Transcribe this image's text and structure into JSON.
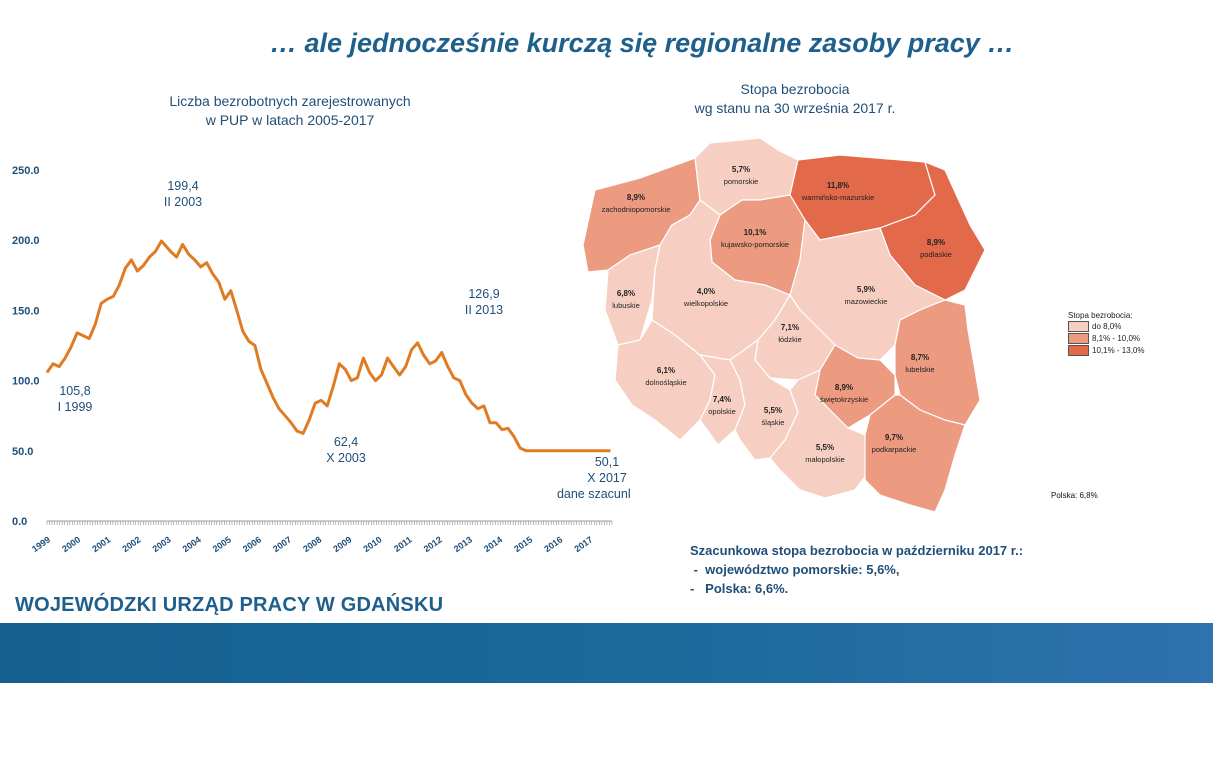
{
  "slide": {
    "title": "… ale jednocześnie kurczą się regionalne zasoby pracy …",
    "org_name": "WOJEWÓDZKI URZĄD PRACY W GDAŃSKU"
  },
  "line_chart_title": [
    "Liczba bezrobotnych zarejestrowanych",
    "w PUP w latach 2005-2017"
  ],
  "map_title": [
    "Stopa bezrobocia",
    "wg stanu na 30 września 2017 r."
  ],
  "estimate": {
    "heading": "Szacunkowa stopa bezrobocia w październiku 2017 r.:",
    "items": [
      " -  województwo pomorskie: 5,6%,",
      "-   Polska: 6,6%."
    ]
  },
  "chart_data": [
    {
      "type": "line",
      "color": "#e07b24",
      "ylim": [
        0,
        250
      ],
      "y_ticks": [
        "0.0",
        "50.0",
        "100.0",
        "150.0",
        "200.0",
        "250.0"
      ],
      "x_tick_labels": [
        "1999",
        "2000",
        "2001",
        "2002",
        "2003",
        "2004",
        "2005",
        "2006",
        "2007",
        "2008",
        "2009",
        "2010",
        "2011",
        "2012",
        "2013",
        "2014",
        "2015",
        "2016",
        "2017"
      ],
      "x": [
        1999.0,
        1999.2,
        1999.4,
        1999.6,
        1999.8,
        2000.0,
        2000.2,
        2000.4,
        2000.6,
        2000.8,
        2001.0,
        2001.2,
        2001.4,
        2001.6,
        2001.8,
        2002.0,
        2002.2,
        2002.4,
        2002.6,
        2002.8,
        2003.1,
        2003.3,
        2003.5,
        2003.7,
        2003.9,
        2004.1,
        2004.3,
        2004.5,
        2004.7,
        2004.9,
        2005.1,
        2005.3,
        2005.5,
        2005.7,
        2005.9,
        2006.1,
        2006.3,
        2006.5,
        2006.7,
        2006.9,
        2007.1,
        2007.3,
        2007.5,
        2007.7,
        2007.9,
        2008.1,
        2008.3,
        2008.5,
        2008.7,
        2008.9,
        2009.1,
        2009.3,
        2009.5,
        2009.7,
        2009.9,
        2010.1,
        2010.3,
        2010.5,
        2010.7,
        2010.9,
        2011.1,
        2011.3,
        2011.5,
        2011.7,
        2011.9,
        2012.1,
        2012.3,
        2012.5,
        2012.7,
        2012.9,
        2013.1,
        2013.3,
        2013.5,
        2013.7,
        2013.9,
        2014.1,
        2014.3,
        2014.5,
        2014.7,
        2014.9,
        2015.1,
        2015.3,
        2015.5,
        2015.7,
        2015.9,
        2016.1,
        2016.3,
        2016.5,
        2016.7,
        2016.9,
        2017.1,
        2017.3,
        2017.5,
        2017.7
      ],
      "y": [
        105.8,
        112,
        110,
        116,
        124,
        134,
        132,
        130,
        140,
        155,
        158,
        160,
        168,
        180,
        186,
        178,
        182,
        188,
        192,
        199.4,
        192,
        188,
        197,
        190,
        186,
        181,
        184,
        176,
        170,
        158,
        164,
        150,
        135,
        128,
        125,
        108,
        98,
        88,
        80,
        75,
        70,
        64,
        62.4,
        72,
        84,
        86,
        82,
        96,
        112,
        108,
        100,
        102,
        116,
        106,
        100,
        104,
        116,
        110,
        104,
        110,
        122,
        126.9,
        118,
        112,
        114,
        120,
        110,
        102,
        100,
        90,
        84,
        80,
        82,
        70,
        70,
        65,
        66,
        60,
        52,
        50.1,
        50,
        50,
        50,
        50,
        50,
        50,
        50,
        50,
        50,
        50,
        50,
        50,
        50,
        50
      ],
      "annotations": [
        {
          "value": "105,8",
          "label": "I 1999"
        },
        {
          "value": "199,4",
          "label": "II 2003"
        },
        {
          "value": "62,4",
          "label": "X 2003"
        },
        {
          "value": "126,9",
          "label": "II 2013"
        },
        {
          "value": "50,1",
          "label": "X 2017",
          "note": "dane szacunkowe"
        }
      ]
    },
    {
      "type": "heatmap",
      "title": "Stopa bezrobocia",
      "subtitle": "wg stanu na 30 września 2017 r.",
      "regions": [
        {
          "name": "pomorskie",
          "value": "5,7%",
          "class": 0
        },
        {
          "name": "warmińsko-mazurskie",
          "value": "11,8%",
          "class": 2
        },
        {
          "name": "zachodniopomorskie",
          "value": "8,9%",
          "class": 1
        },
        {
          "name": "kujawsko-pomorskie",
          "value": "10,1%",
          "class": 2
        },
        {
          "name": "podlaskie",
          "value": "8,9%",
          "class": 1
        },
        {
          "name": "lubuskie",
          "value": "6,8%",
          "class": 0
        },
        {
          "name": "wielkopolskie",
          "value": "4,0%",
          "class": 0
        },
        {
          "name": "mazowieckie",
          "value": "5,9%",
          "class": 0
        },
        {
          "name": "łódzkie",
          "value": "7,1%",
          "class": 0
        },
        {
          "name": "lubelskie",
          "value": "8,7%",
          "class": 1
        },
        {
          "name": "dolnośląskie",
          "value": "6,1%",
          "class": 0
        },
        {
          "name": "świętokrzyskie",
          "value": "8,9%",
          "class": 1
        },
        {
          "name": "opolskie",
          "value": "7,4%",
          "class": 0
        },
        {
          "name": "śląskie",
          "value": "5,5%",
          "class": 0
        },
        {
          "name": "małopolskie",
          "value": "5,5%",
          "class": 0
        },
        {
          "name": "podkarpackie",
          "value": "9,7%",
          "class": 1
        }
      ],
      "legend_title": "Stopa bezrobocia:",
      "legend": [
        {
          "label": "do 8,0%",
          "color": "#f6cfc2"
        },
        {
          "label": "8,1% - 10,0%",
          "color": "#ec9a80"
        },
        {
          "label": "10,1% - 13,0%",
          "color": "#e2694a"
        }
      ],
      "note": "Polska: 6,8%"
    }
  ]
}
